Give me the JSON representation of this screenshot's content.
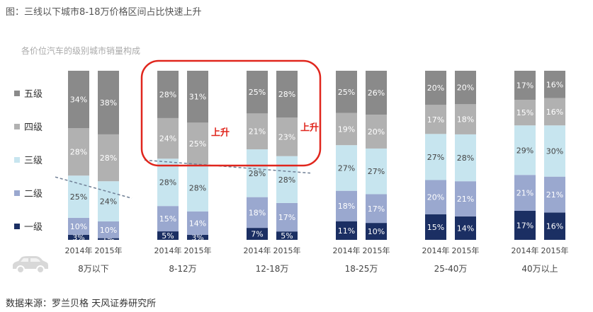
{
  "figure_title": "图：三线以下城市8-18万价格区间占比快速上升",
  "source": "数据来源：罗兰贝格 天风证券研究所",
  "chart_data": {
    "type": "bar",
    "stacked": true,
    "normalized": true,
    "title": "各价位汽车的级别城市销量构成",
    "groups": [
      "8万以下",
      "8-12万",
      "12-18万",
      "18-25万",
      "25-40万",
      "40万以上"
    ],
    "years": [
      "2014年",
      "2015年"
    ],
    "series": [
      {
        "name": "一级",
        "color": "#1b2f63",
        "values": [
          [
            3,
            1
          ],
          [
            5,
            3
          ],
          [
            7,
            5
          ],
          [
            11,
            10
          ],
          [
            15,
            14
          ],
          [
            17,
            16
          ]
        ],
        "labels": [
          [
            "3%",
            "1%"
          ],
          [
            "5%",
            "3%"
          ],
          [
            "7%",
            "5%"
          ],
          [
            "11%",
            "10%"
          ],
          [
            "15%",
            "14%"
          ],
          [
            "17%",
            "16%"
          ]
        ]
      },
      {
        "name": "二级",
        "color": "#9aa8cf",
        "values": [
          [
            10,
            10
          ],
          [
            15,
            14
          ],
          [
            18,
            17
          ],
          [
            18,
            17
          ],
          [
            20,
            21
          ],
          [
            21,
            21
          ]
        ],
        "labels": [
          [
            "10%",
            "10%"
          ],
          [
            "15%",
            "14%"
          ],
          [
            "18%",
            "17%"
          ],
          [
            "18%",
            "17%"
          ],
          [
            "20%",
            "21%"
          ],
          [
            "21%",
            "21%"
          ]
        ]
      },
      {
        "name": "三级",
        "color": "#c7e5ef",
        "values": [
          [
            25,
            24
          ],
          [
            28,
            28
          ],
          [
            28,
            28
          ],
          [
            27,
            27
          ],
          [
            27,
            28
          ],
          [
            29,
            30
          ]
        ],
        "labels": [
          [
            "25%",
            "24%"
          ],
          [
            "28%",
            "28%"
          ],
          [
            "28%",
            "28%"
          ],
          [
            "27%",
            "27%"
          ],
          [
            "27%",
            "28%"
          ],
          [
            "29%",
            "30%"
          ]
        ]
      },
      {
        "name": "四级",
        "color": "#b1b1b1",
        "values": [
          [
            28,
            28
          ],
          [
            24,
            25
          ],
          [
            21,
            23
          ],
          [
            19,
            20
          ],
          [
            17,
            18
          ],
          [
            15,
            16
          ]
        ],
        "labels": [
          [
            "28%",
            "28%"
          ],
          [
            "24%",
            "25%"
          ],
          [
            "21%",
            "23%"
          ],
          [
            "19%",
            "20%"
          ],
          [
            "17%",
            "18%"
          ],
          [
            "15%",
            "16%"
          ]
        ]
      },
      {
        "name": "五级",
        "color": "#8a8a8a",
        "values": [
          [
            34,
            38
          ],
          [
            28,
            31
          ],
          [
            25,
            28
          ],
          [
            25,
            26
          ],
          [
            20,
            20
          ],
          [
            17,
            16
          ]
        ],
        "labels": [
          [
            "34%",
            "38%"
          ],
          [
            "28%",
            "31%"
          ],
          [
            "25%",
            "28%"
          ],
          [
            "25%",
            "26%"
          ],
          [
            "20%",
            "20%"
          ],
          [
            "17%",
            "16%"
          ]
        ]
      }
    ],
    "legend_order": [
      "五级",
      "四级",
      "三级",
      "二级",
      "一级"
    ],
    "legend_position": "left",
    "annotations": [
      {
        "text": "上升",
        "group": "8-12万",
        "color": "#e0261d"
      },
      {
        "text": "上升",
        "group": "12-18万",
        "color": "#e0261d"
      }
    ],
    "highlight": {
      "groups": [
        "8-12万",
        "12-18万"
      ],
      "color": "#e0261d"
    },
    "car_icon": "car-icon"
  }
}
